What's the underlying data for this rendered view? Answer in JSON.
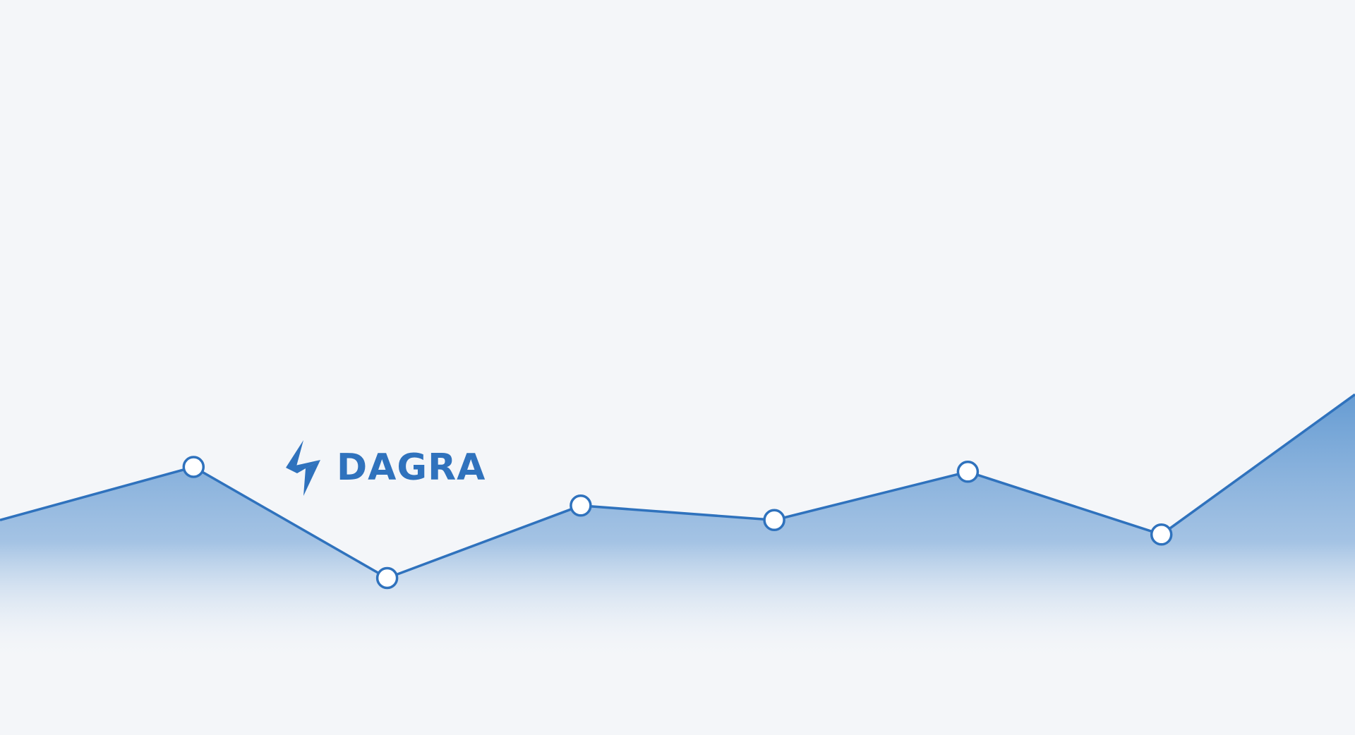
{
  "brand": {
    "name": "DAGRA",
    "logo_icon": "lightning-bolt-icon"
  },
  "colors": {
    "background": "#f4f6f9",
    "accent": "#2f72bd",
    "fill_top": "#4d8ccc",
    "marker_fill": "#ffffff"
  },
  "chart_data": {
    "type": "area",
    "x": [
      0,
      1,
      2,
      3,
      4,
      5,
      6,
      7
    ],
    "values": [
      42,
      53,
      30,
      45,
      42,
      52,
      39,
      68
    ],
    "markers": [
      false,
      true,
      true,
      true,
      true,
      true,
      true,
      false
    ],
    "ylim": [
      0,
      100
    ],
    "grid": false,
    "legend": "none",
    "title": "",
    "xlabel": "",
    "ylabel": ""
  }
}
